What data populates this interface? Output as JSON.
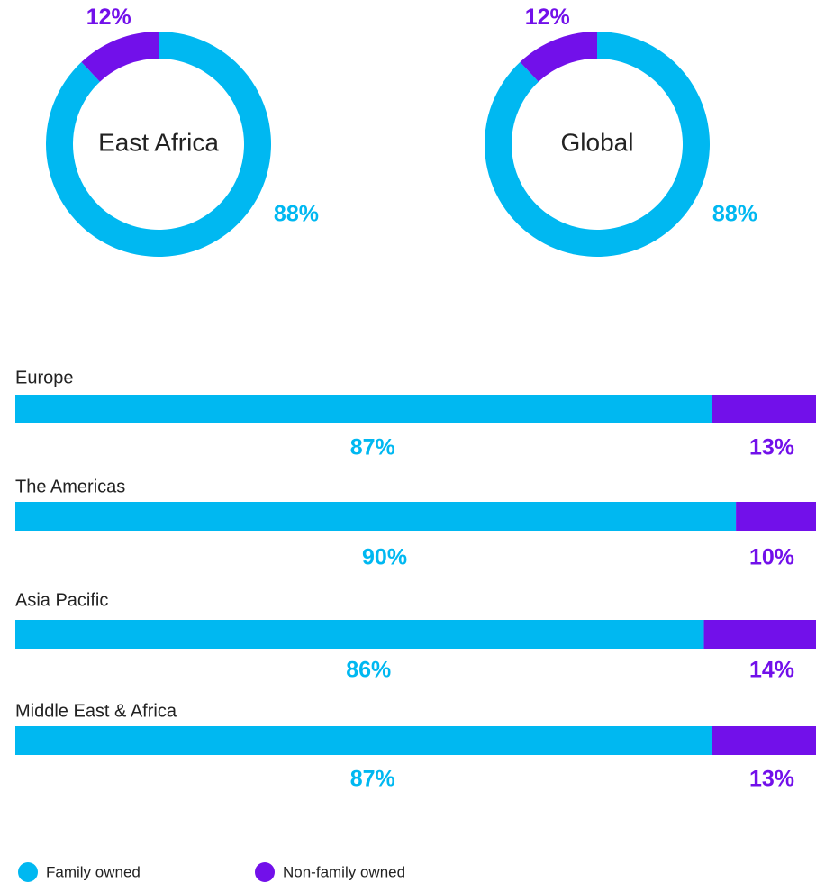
{
  "chart_data": [
    {
      "type": "pie",
      "donut": true,
      "center_label": "East Africa",
      "values": [
        88,
        12
      ],
      "value_labels": [
        "88%",
        "12%"
      ],
      "colors": [
        "#00b8f1",
        "#7210ea"
      ]
    },
    {
      "type": "pie",
      "donut": true,
      "center_label": "Global",
      "values": [
        88,
        12
      ],
      "value_labels": [
        "88%",
        "12%"
      ],
      "colors": [
        "#00b8f1",
        "#7210ea"
      ]
    },
    {
      "type": "bar",
      "orientation": "horizontal",
      "stacked": true,
      "categories": [
        "Europe",
        "The Americas",
        "Asia Pacific",
        "Middle East & Africa"
      ],
      "xlim": [
        0,
        100
      ],
      "series": [
        {
          "name": "Family owned",
          "color": "#00b8f1",
          "values": [
            87,
            90,
            86,
            87
          ],
          "value_labels": [
            "87%",
            "90%",
            "86%",
            "87%"
          ]
        },
        {
          "name": "Non-family owned",
          "color": "#7210ea",
          "values": [
            13,
            10,
            14,
            13
          ],
          "value_labels": [
            "13%",
            "10%",
            "14%",
            "13%"
          ]
        }
      ],
      "legend": "bottom-left"
    }
  ]
}
